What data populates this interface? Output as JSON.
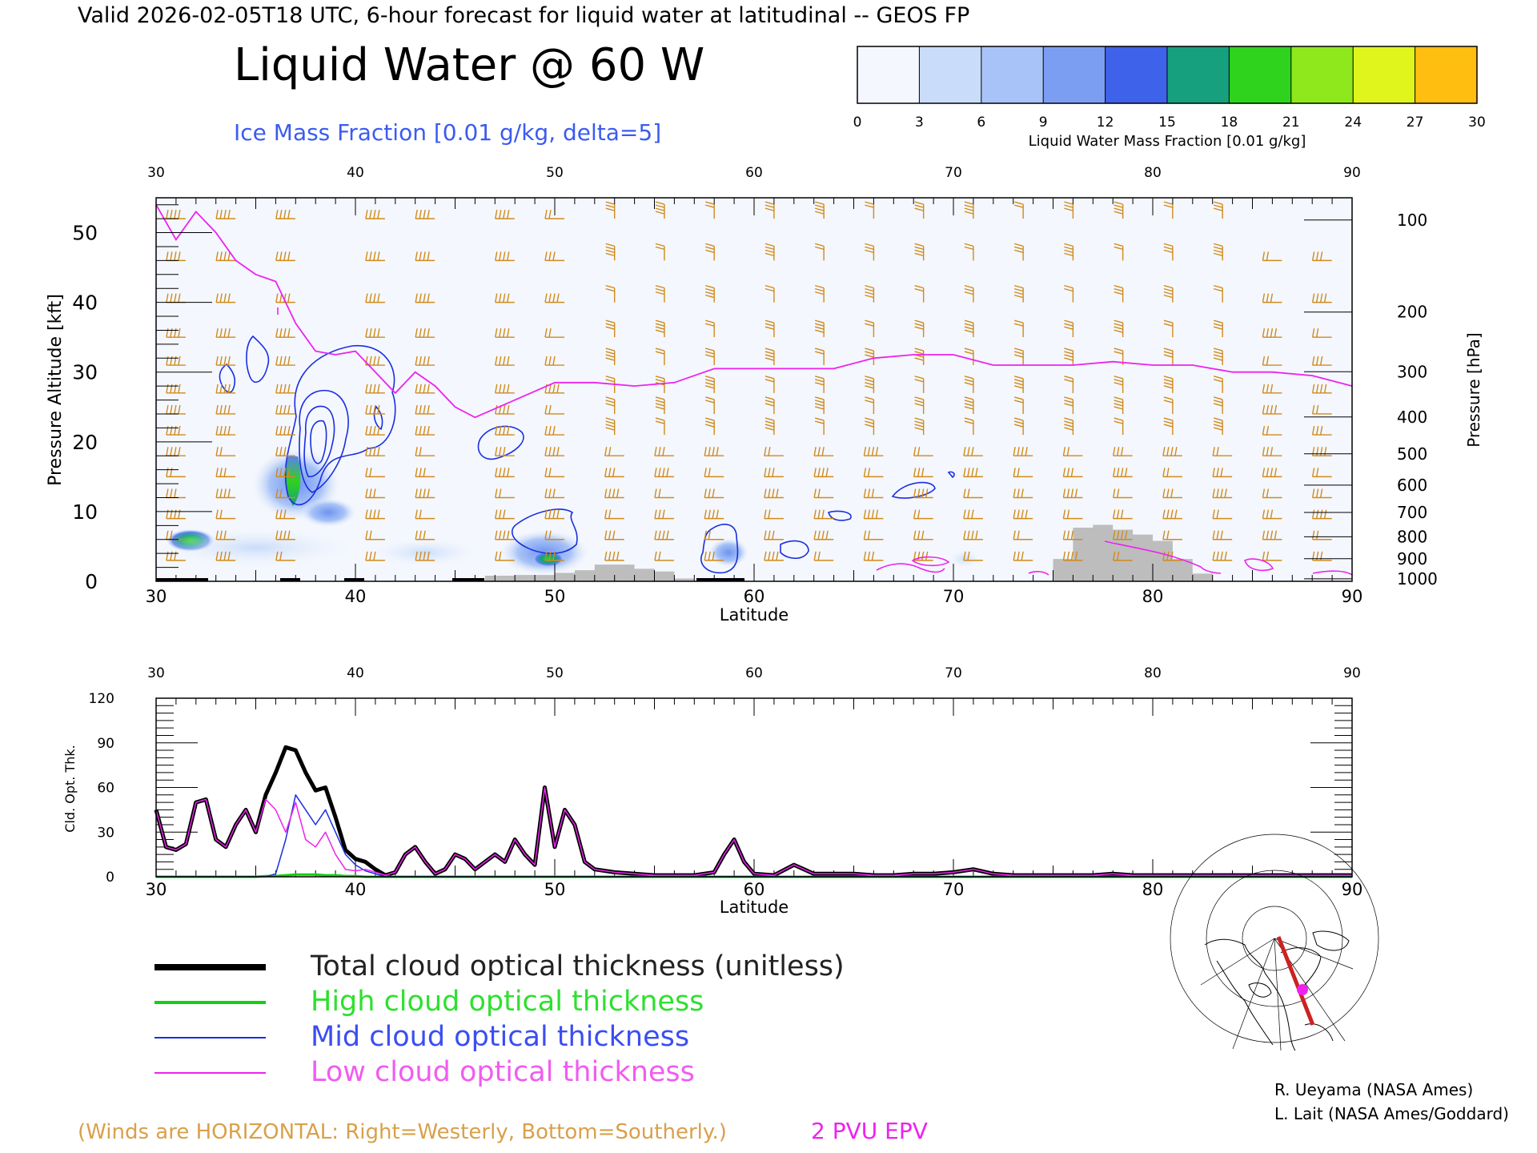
{
  "header": {
    "valid_line": "Valid 2026-02-05T18 UTC, 6-hour forecast for liquid water at latitudinal -- GEOS FP",
    "title": "Liquid Water @ 60 W",
    "subtitle": "Ice Mass Fraction [0.01 g/kg, delta=5]"
  },
  "colorbar": {
    "ticks": [
      "0",
      "3",
      "6",
      "9",
      "12",
      "15",
      "18",
      "21",
      "24",
      "27",
      "30"
    ],
    "label": "Liquid Water Mass Fraction [0.01 g/kg]",
    "colors": [
      "#f4f7fd",
      "#c9dcfa",
      "#a8c3f7",
      "#7c9ef2",
      "#3f62ea",
      "#16a07e",
      "#2fd21c",
      "#8ee81c",
      "#e0f51c",
      "#ffbe10",
      "#ff6a10"
    ]
  },
  "colors": {
    "ice_contour": "#1a2ee0",
    "wind_barb": "#d08a1c",
    "epv_line": "#ee22ee",
    "terrain": "#bdbdbd",
    "total": "#000000",
    "high": "#12d012",
    "mid": "#1a2ee0",
    "low": "#ee22ee"
  },
  "cross_section": {
    "lat_ticks": [
      "30",
      "40",
      "50",
      "60",
      "70",
      "80",
      "90"
    ],
    "xlabel": "Latitude",
    "ylabel_left": "Pressure Altitude [kft]",
    "ylabel_right": "Pressure [hPa]",
    "kft_ticks": [
      "0",
      "10",
      "20",
      "30",
      "40",
      "50"
    ],
    "hpa_ticks": [
      "100",
      "200",
      "300",
      "400",
      "500",
      "600",
      "700",
      "800",
      "900",
      "1000"
    ]
  },
  "chart_data": [
    {
      "type": "area",
      "title": "Liquid Water @ 60 W",
      "xlabel": "Latitude",
      "ylabel": "Pressure Altitude [kft]",
      "xlim": [
        30,
        90
      ],
      "ylim": [
        0,
        55
      ],
      "epv_2pvu_kft": {
        "x": [
          30,
          31,
          32,
          33,
          34,
          35,
          36,
          37,
          38,
          39,
          40,
          41,
          42,
          43,
          44,
          45,
          46,
          48,
          50,
          52,
          54,
          56,
          58,
          60,
          62,
          64,
          66,
          68,
          70,
          72,
          74,
          76,
          78,
          80,
          82,
          84,
          86,
          88,
          90
        ],
        "y": [
          54,
          49,
          53,
          50,
          46,
          44,
          43,
          37,
          33,
          32.5,
          33,
          30,
          27,
          30,
          28,
          25,
          23.5,
          26,
          28.5,
          28.5,
          28,
          28.5,
          30.5,
          30.5,
          30.5,
          30.5,
          32,
          32.5,
          32.5,
          31,
          31,
          31,
          31.5,
          31,
          31,
          30,
          30,
          29.5,
          28
        ]
      },
      "terrain_kft": {
        "x": [
          46.5,
          48,
          50,
          51,
          52,
          54,
          55,
          56,
          75,
          76,
          77,
          78,
          79,
          80,
          81,
          82
        ],
        "y": [
          0.8,
          0.9,
          1.2,
          1.6,
          2.4,
          1.8,
          1.4,
          0.4,
          3.2,
          7.7,
          8.1,
          7.4,
          6.7,
          5.8,
          3.2,
          1.1
        ]
      }
    },
    {
      "type": "line",
      "xlabel": "Latitude",
      "ylabel": "Cld. Opt. Thk.",
      "xlim": [
        30,
        90
      ],
      "ylim": [
        0,
        120
      ],
      "y_ticks": [
        "0",
        "30",
        "60",
        "90",
        "120"
      ],
      "x": [
        30,
        30.5,
        31,
        31.5,
        32,
        32.5,
        33,
        33.5,
        34,
        34.5,
        35,
        35.5,
        36,
        36.5,
        37,
        37.5,
        38,
        38.5,
        39,
        39.5,
        40,
        40.5,
        41,
        41.5,
        42,
        42.5,
        43,
        43.5,
        44,
        44.5,
        45,
        45.5,
        46,
        46.5,
        47,
        47.5,
        48,
        48.5,
        49,
        49.5,
        50,
        50.5,
        51,
        51.5,
        52,
        53,
        54,
        55,
        56,
        57,
        58,
        58.5,
        59,
        59.5,
        60,
        61,
        62,
        62.5,
        63,
        64,
        65,
        66,
        67,
        68,
        69,
        70,
        71,
        72,
        73,
        74,
        75,
        76,
        77,
        78,
        79,
        80,
        82,
        84,
        86,
        88,
        90
      ],
      "series": [
        {
          "name": "Total cloud optical thickness (unitless)",
          "values": [
            45,
            20,
            18,
            22,
            50,
            52,
            25,
            20,
            35,
            45,
            30,
            55,
            70,
            87,
            85,
            70,
            58,
            60,
            40,
            18,
            12,
            10,
            5,
            1,
            3,
            15,
            20,
            10,
            2,
            5,
            15,
            12,
            5,
            10,
            15,
            10,
            25,
            15,
            8,
            60,
            20,
            45,
            35,
            10,
            5,
            3,
            2,
            1,
            1,
            1,
            3,
            15,
            25,
            10,
            2,
            1,
            8,
            5,
            2,
            2,
            2,
            1,
            1,
            2,
            2,
            3,
            5,
            2,
            1,
            1,
            1,
            1,
            1,
            2,
            1,
            1,
            1,
            1,
            1,
            1,
            1
          ]
        },
        {
          "name": "High cloud optical thickness",
          "values": [
            0,
            0,
            0,
            0,
            0,
            0,
            0,
            0,
            0,
            0,
            0,
            0.5,
            0.5,
            1,
            1.5,
            1.5,
            1.5,
            1,
            1,
            0.5,
            0.5,
            0,
            0,
            0,
            0,
            0,
            0,
            0,
            0,
            0,
            0,
            0,
            0,
            0,
            0,
            0,
            0,
            0,
            0,
            0,
            0,
            0,
            0,
            0,
            0,
            0,
            0,
            0,
            0,
            0,
            0,
            0,
            0,
            0,
            0,
            0,
            0,
            0,
            0,
            0,
            0,
            0,
            0,
            0,
            0,
            0,
            0,
            0,
            0,
            0,
            0,
            0,
            0,
            0,
            0,
            0,
            0,
            0,
            0,
            0,
            0
          ]
        },
        {
          "name": "Mid cloud optical thickness",
          "values": [
            0,
            0,
            0,
            0,
            0,
            0,
            0,
            0,
            0,
            0,
            0,
            0,
            2,
            25,
            55,
            45,
            35,
            45,
            30,
            15,
            8,
            4,
            2,
            0,
            0,
            0,
            0,
            0,
            0,
            0,
            0,
            0,
            0,
            0,
            0,
            0,
            0,
            0,
            0,
            0,
            0,
            0,
            0,
            0,
            0,
            0,
            0,
            0,
            0,
            0,
            0,
            0,
            0,
            0,
            0,
            0,
            0,
            0,
            0,
            0,
            0,
            0,
            0,
            0,
            0,
            0,
            0,
            0,
            0,
            0,
            0,
            0,
            0,
            0,
            0,
            0,
            0,
            0,
            0,
            0,
            0
          ]
        },
        {
          "name": "Low cloud optical thickness",
          "values": [
            45,
            20,
            18,
            22,
            50,
            52,
            25,
            20,
            35,
            45,
            30,
            52,
            45,
            30,
            50,
            25,
            20,
            30,
            15,
            5,
            4,
            5,
            3,
            1,
            3,
            15,
            20,
            10,
            2,
            5,
            15,
            12,
            5,
            10,
            15,
            10,
            25,
            15,
            8,
            60,
            20,
            45,
            35,
            10,
            5,
            3,
            2,
            1,
            1,
            1,
            3,
            15,
            25,
            10,
            2,
            1,
            8,
            5,
            2,
            2,
            2,
            1,
            1,
            2,
            2,
            3,
            5,
            2,
            1,
            1,
            1,
            1,
            1,
            2,
            1,
            1,
            1,
            1,
            1,
            1,
            1
          ]
        }
      ]
    }
  ],
  "bottom_panel": {
    "lat_ticks": [
      "30",
      "40",
      "50",
      "60",
      "70",
      "80",
      "90"
    ],
    "xlabel": "Latitude",
    "ylabel": "Cld. Opt. Thk.",
    "y_ticks": [
      "0",
      "30",
      "60",
      "90",
      "120"
    ]
  },
  "legend": {
    "total": "Total cloud optical thickness (unitless)",
    "high": "High cloud optical thickness",
    "mid": "Mid cloud optical thickness",
    "low": "Low cloud optical thickness"
  },
  "footer": {
    "winds_note": "(Winds are HORIZONTAL: Right=Westerly, Bottom=Southerly.)",
    "epv_label": "2 PVU EPV",
    "credit1": "R. Ueyama (NASA Ames)",
    "credit2": "L. Lait (NASA Ames/Goddard)"
  }
}
